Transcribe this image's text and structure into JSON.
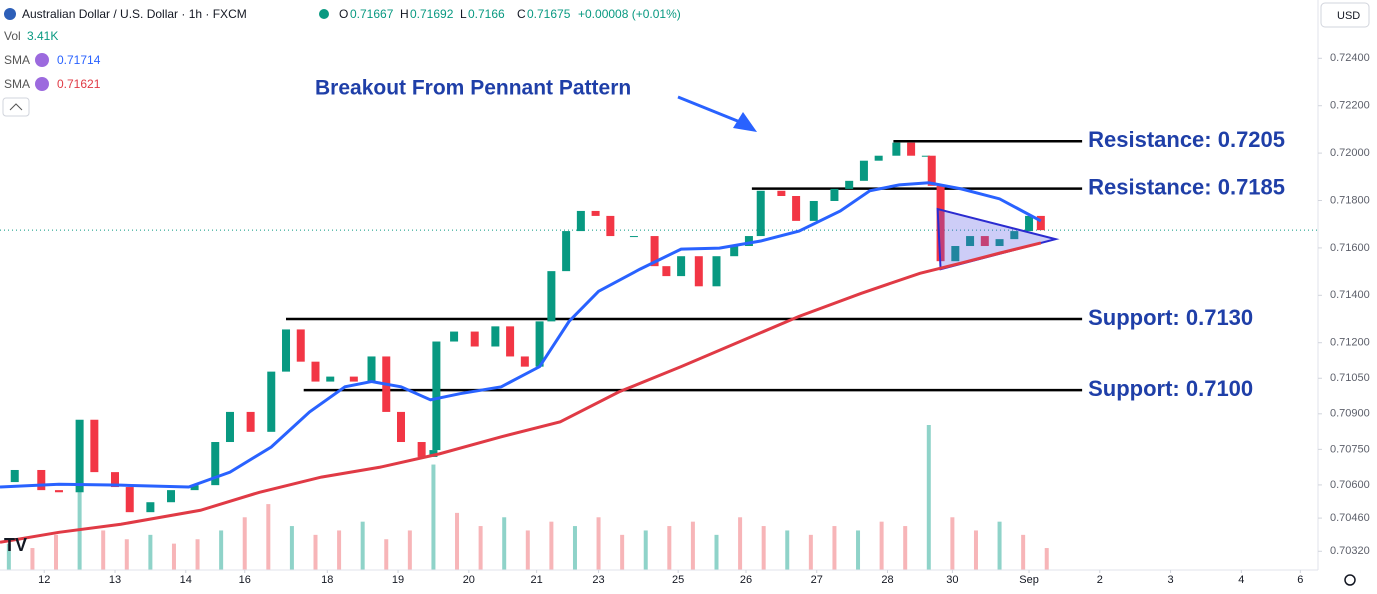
{
  "chart_data": {
    "type": "candlestick",
    "header": {
      "symbol": "Australian Dollar / U.S. Dollar · 1h · FXCM",
      "open": 0.71667,
      "high": 0.71692,
      "low": 0.7166,
      "close": 0.71675,
      "change": "+0.00008 (+0.01%)"
    },
    "volume_readout": "3.41K",
    "currency_button": "USD",
    "annotation": "Breakout From Pennant Pattern",
    "xlim": [
      -15,
      432
    ],
    "ylim": [
      0.70241,
      0.72646
    ],
    "yticks": [
      {
        "value": 0.724,
        "label": "0.72400"
      },
      {
        "value": 0.722,
        "label": "0.72200"
      },
      {
        "value": 0.72,
        "label": "0.72000"
      },
      {
        "value": 0.718,
        "label": "0.71800"
      },
      {
        "value": 0.716,
        "label": "0.71600"
      },
      {
        "value": 0.714,
        "label": "0.71400"
      },
      {
        "value": 0.712,
        "label": "0.71200"
      },
      {
        "value": 0.7105,
        "label": "0.71050"
      },
      {
        "value": 0.709,
        "label": "0.70900"
      },
      {
        "value": 0.7075,
        "label": "0.70750"
      },
      {
        "value": 0.706,
        "label": "0.70600"
      },
      {
        "value": 0.7046,
        "label": "0.70460"
      },
      {
        "value": 0.7032,
        "label": "0.70320"
      }
    ],
    "xticks": [
      {
        "value": 0,
        "label": "12"
      },
      {
        "value": 24,
        "label": "13"
      },
      {
        "value": 48,
        "label": "14"
      },
      {
        "value": 68,
        "label": "16"
      },
      {
        "value": 96,
        "label": "18"
      },
      {
        "value": 120,
        "label": "19"
      },
      {
        "value": 144,
        "label": "20"
      },
      {
        "value": 167,
        "label": "21"
      },
      {
        "value": 188,
        "label": "23"
      },
      {
        "value": 215,
        "label": "25"
      },
      {
        "value": 238,
        "label": "26"
      },
      {
        "value": 262,
        "label": "27"
      },
      {
        "value": 286,
        "label": "28"
      },
      {
        "value": 308,
        "label": "30"
      },
      {
        "value": 334,
        "label": "Sep"
      },
      {
        "value": 358,
        "label": "2"
      },
      {
        "value": 382,
        "label": "3"
      },
      {
        "value": 406,
        "label": "4"
      },
      {
        "value": 426,
        "label": "6"
      }
    ],
    "price": {
      "x": [
        -15,
        -10,
        -1,
        5,
        12,
        17,
        24,
        29,
        36,
        43,
        51,
        58,
        63,
        70,
        77,
        82,
        87,
        92,
        97,
        105,
        111,
        116,
        121,
        128,
        132,
        133,
        139,
        146,
        153,
        158,
        163,
        168,
        172,
        177,
        182,
        187,
        192,
        200,
        207,
        211,
        216,
        222,
        228,
        234,
        239,
        243,
        250,
        255,
        261,
        268,
        273,
        278,
        283,
        289,
        294,
        299,
        301,
        304,
        309,
        314,
        319,
        324,
        329,
        334,
        338
      ],
      "values": [
        0.70612,
        0.70663,
        0.70578,
        0.70569,
        0.70875,
        0.70654,
        0.70591,
        0.70485,
        0.70527,
        0.70578,
        0.70599,
        0.70781,
        0.70908,
        0.70824,
        0.71078,
        0.71256,
        0.7112,
        0.71036,
        0.71057,
        0.71036,
        0.71142,
        0.70908,
        0.70781,
        0.70718,
        0.70747,
        0.71205,
        0.71247,
        0.71184,
        0.71269,
        0.71142,
        0.71099,
        0.7129,
        0.71502,
        0.71671,
        0.71756,
        0.71735,
        0.7165,
        0.7165,
        0.71523,
        0.71481,
        0.71565,
        0.71438,
        0.71565,
        0.71608,
        0.7165,
        0.71841,
        0.71819,
        0.71714,
        0.71798,
        0.71849,
        0.71883,
        0.71968,
        0.71989,
        0.72044,
        0.71989,
        0.71989,
        0.71862,
        0.71544,
        0.71608,
        0.7165,
        0.71608,
        0.71637,
        0.71671,
        0.71735,
        0.71675
      ]
    },
    "series": [
      {
        "name": "SMA",
        "color": "#2962ff",
        "last": 0.71714,
        "x": [
          -15,
          5,
          26,
          49,
          63,
          77,
          90,
          102,
          111,
          121,
          131,
          141,
          155,
          168,
          178,
          188,
          202,
          216,
          229,
          243,
          256,
          270,
          280,
          290,
          300,
          311,
          324,
          338
        ],
        "values": [
          0.70591,
          0.70603,
          0.70599,
          0.70591,
          0.70654,
          0.7076,
          0.70908,
          0.71014,
          0.71036,
          0.71014,
          0.70959,
          0.70985,
          0.71014,
          0.71099,
          0.7129,
          0.71417,
          0.7151,
          0.71595,
          0.71599,
          0.71629,
          0.71671,
          0.71756,
          0.71841,
          0.71866,
          0.71875,
          0.71849,
          0.71807,
          0.71714
        ]
      },
      {
        "name": "SMA",
        "color": "#e03a45",
        "last": 0.71621,
        "x": [
          -15,
          5,
          26,
          53,
          73,
          94,
          114,
          134,
          155,
          175,
          195,
          216,
          236,
          256,
          277,
          297,
          311,
          324,
          338
        ],
        "values": [
          0.70358,
          0.704,
          0.70434,
          0.70493,
          0.70569,
          0.70633,
          0.70675,
          0.70731,
          0.70803,
          0.70866,
          0.70993,
          0.71099,
          0.71205,
          0.71311,
          0.71408,
          0.71493,
          0.71536,
          0.71578,
          0.71621
        ]
      }
    ],
    "levels": [
      {
        "label": "Resistance: 0.7205",
        "value": 0.7205,
        "x": [
          288,
          352
        ]
      },
      {
        "label": "Resistance: 0.7185",
        "value": 0.7185,
        "x": [
          240,
          352
        ]
      },
      {
        "label": "Support: 0.7130",
        "value": 0.713,
        "x": [
          82,
          352
        ]
      },
      {
        "label": "Support: 0.7100",
        "value": 0.71,
        "x": [
          88,
          352
        ]
      }
    ],
    "pennant": {
      "x": [
        303,
        343,
        304
      ],
      "values": [
        0.71764,
        0.71637,
        0.7151
      ]
    },
    "volume": {
      "x": [
        -12,
        -4,
        4,
        12,
        20,
        28,
        36,
        44,
        52,
        60,
        68,
        76,
        84,
        92,
        100,
        108,
        116,
        124,
        132,
        140,
        148,
        156,
        164,
        172,
        180,
        188,
        196,
        204,
        212,
        220,
        228,
        236,
        244,
        252,
        260,
        268,
        276,
        284,
        292,
        300,
        308,
        316,
        324,
        332,
        340
      ],
      "values": [
        6,
        5,
        8,
        22,
        9,
        7,
        8,
        6,
        7,
        9,
        12,
        15,
        10,
        8,
        9,
        11,
        7,
        9,
        24,
        13,
        10,
        12,
        9,
        11,
        10,
        12,
        8,
        9,
        10,
        11,
        8,
        12,
        10,
        9,
        8,
        10,
        9,
        11,
        10,
        33,
        12,
        9,
        11,
        8,
        5
      ]
    }
  }
}
